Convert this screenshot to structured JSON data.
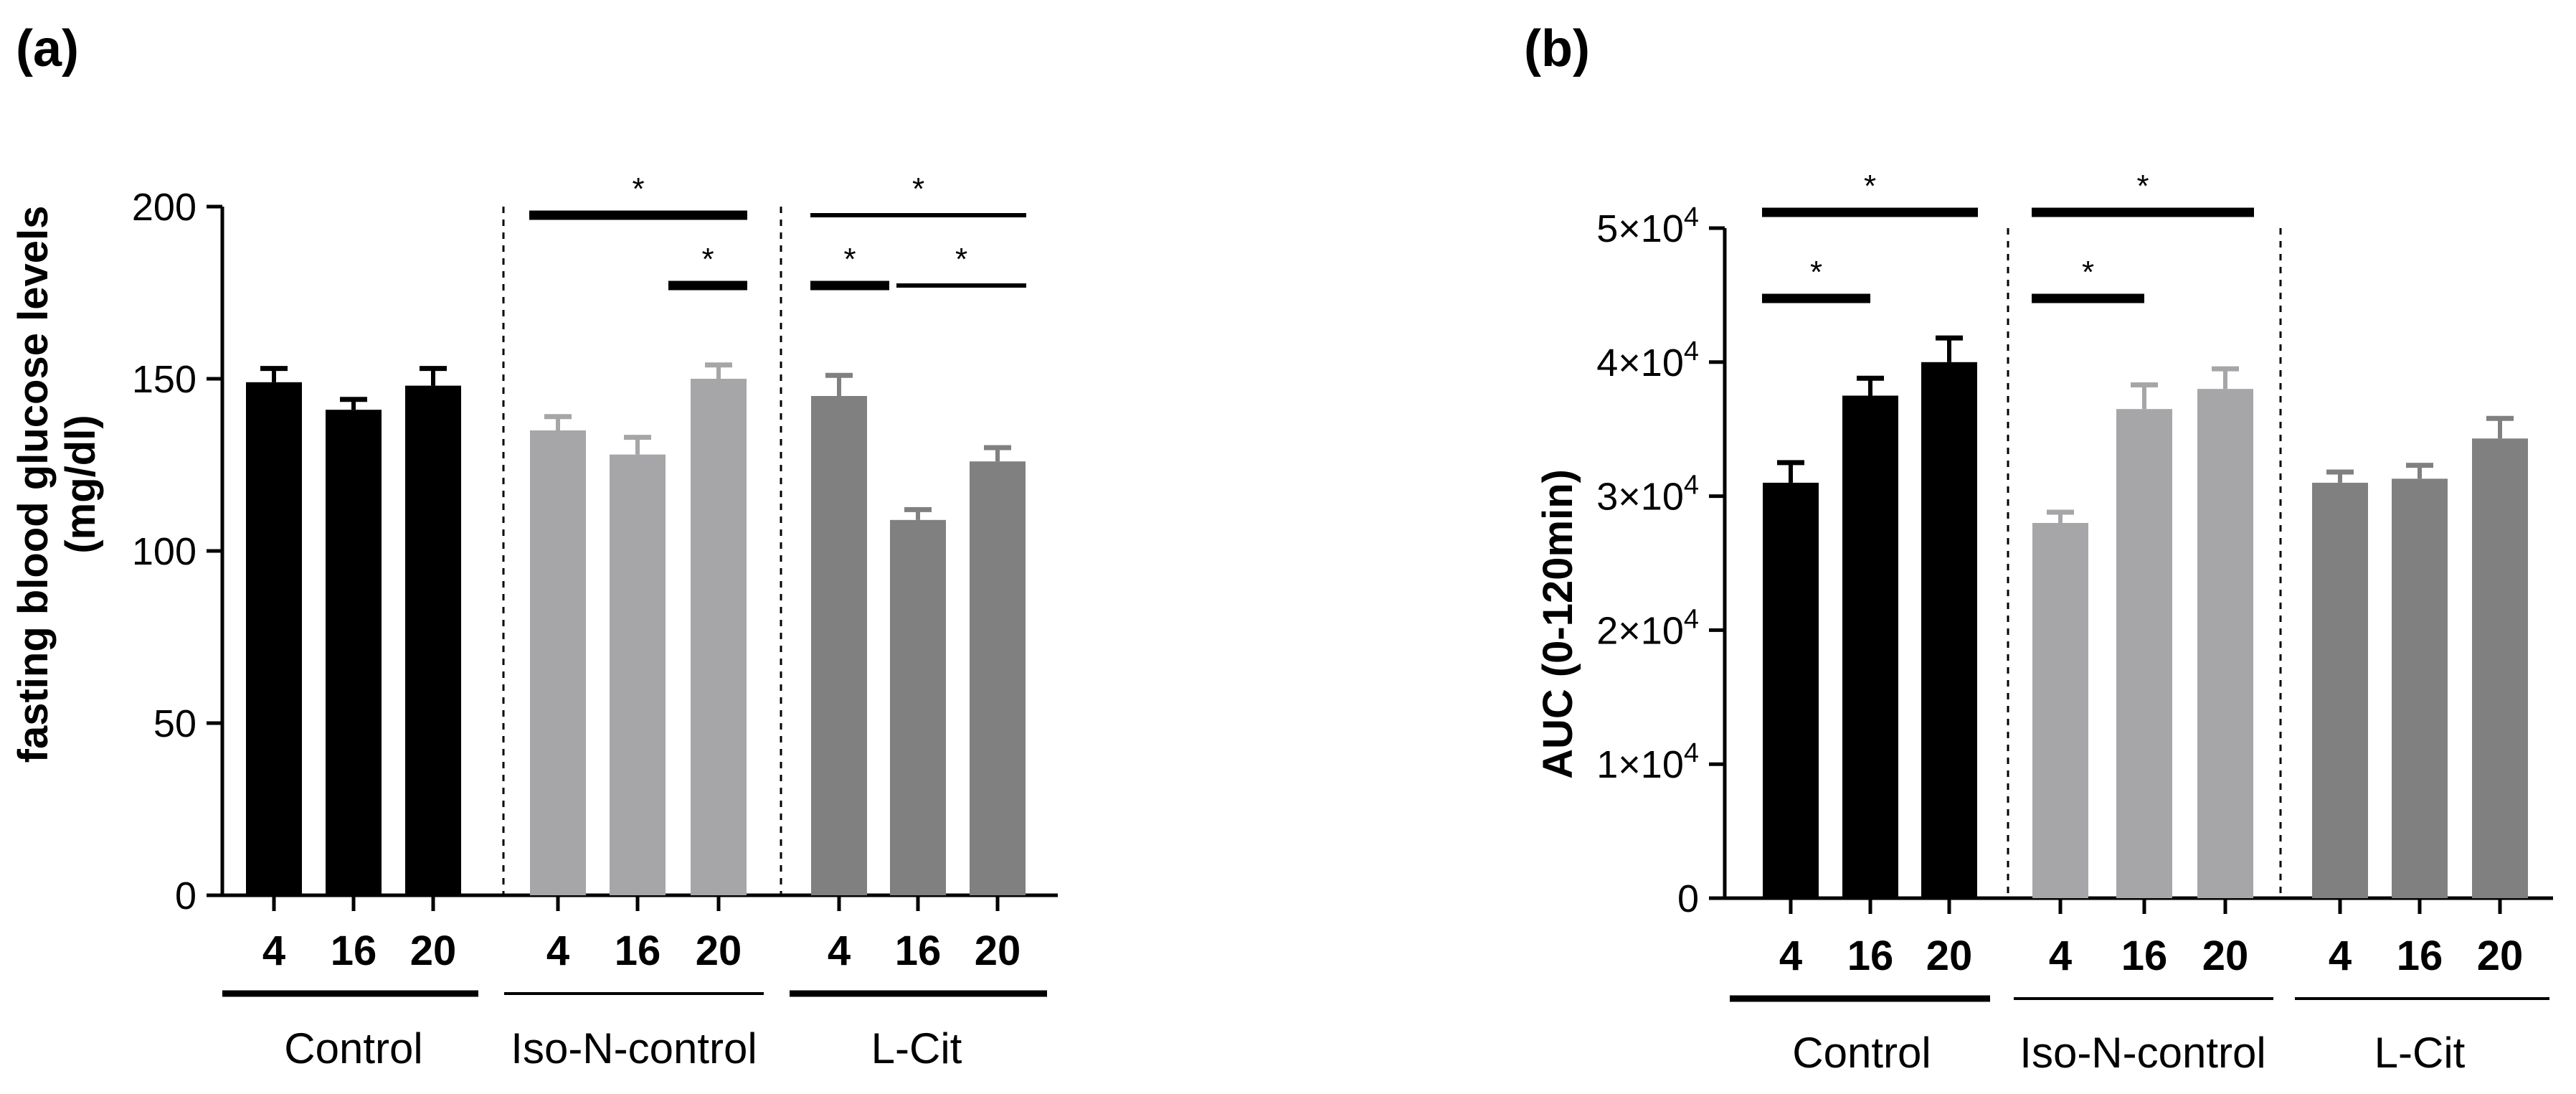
{
  "chart_data": [
    {
      "type": "bar",
      "panel_label": "(a)",
      "title": "",
      "ylabel_line1": "fasting blood glucose levels",
      "ylabel_line2": "(mg/dl)",
      "ylim": [
        0,
        200
      ],
      "yticks": [
        0,
        50,
        100,
        150,
        200
      ],
      "ytick_labels": [
        "0",
        "50",
        "100",
        "150",
        "200"
      ],
      "group_names": [
        "Control",
        "Iso-N-control",
        "L-Cit"
      ],
      "categories": [
        "4",
        "16",
        "20"
      ],
      "group_colors": [
        "#000000",
        "#a6a6a8",
        "#808080"
      ],
      "series": [
        {
          "name": "Control",
          "values": [
            149,
            141,
            148
          ],
          "errors": [
            4,
            3,
            5
          ]
        },
        {
          "name": "Iso-N-control",
          "values": [
            135,
            128,
            150
          ],
          "errors": [
            4,
            5,
            4
          ]
        },
        {
          "name": "L-Cit",
          "values": [
            145,
            109,
            126
          ],
          "errors": [
            6,
            3,
            4
          ]
        }
      ],
      "annotations": [
        {
          "group": 1,
          "from": 0,
          "to": 2,
          "level": 0,
          "label": "*",
          "heavy": true
        },
        {
          "group": 1,
          "from": 2,
          "to": 2,
          "level": 1,
          "label": "*",
          "heavy": true
        },
        {
          "group": 2,
          "from": 0,
          "to": 2,
          "level": 0,
          "label": "*",
          "heavy": false
        },
        {
          "group": 2,
          "from": 0,
          "to": 1,
          "level": 1,
          "label": "*",
          "heavy": true
        },
        {
          "group": 2,
          "from": 1,
          "to": 2,
          "level": 1,
          "label": "*",
          "heavy": false
        }
      ]
    },
    {
      "type": "bar",
      "panel_label": "(b)",
      "title": "",
      "ylabel_line1": "AUC (0-120min)",
      "ylabel_line2": "",
      "ylim": [
        0,
        50000
      ],
      "yticks": [
        0,
        10000,
        20000,
        30000,
        40000,
        50000
      ],
      "ytick_labels": [
        "0",
        "1×10",
        "2×10",
        "3×10",
        "4×10",
        "5×10"
      ],
      "ytick_exponents": [
        "",
        "4",
        "4",
        "4",
        "4",
        "4"
      ],
      "group_names": [
        "Control",
        "Iso-N-control",
        "L-Cit"
      ],
      "categories": [
        "4",
        "16",
        "20"
      ],
      "group_colors": [
        "#000000",
        "#a6a6a8",
        "#808080"
      ],
      "series": [
        {
          "name": "Control",
          "values": [
            31000,
            37500,
            40000
          ],
          "errors": [
            1500,
            1300,
            1800
          ]
        },
        {
          "name": "Iso-N-control",
          "values": [
            28000,
            36500,
            38000
          ],
          "errors": [
            800,
            1800,
            1500
          ]
        },
        {
          "name": "L-Cit",
          "values": [
            31000,
            31300,
            34300
          ],
          "errors": [
            800,
            1000,
            1500
          ]
        }
      ],
      "annotations": [
        {
          "group": 0,
          "from": 0,
          "to": 2,
          "level": 0,
          "label": "*",
          "heavy": true
        },
        {
          "group": 0,
          "from": 0,
          "to": 1,
          "level": 1,
          "label": "*",
          "heavy": true
        },
        {
          "group": 1,
          "from": 0,
          "to": 2,
          "level": 0,
          "label": "*",
          "heavy": true
        },
        {
          "group": 1,
          "from": 0,
          "to": 1,
          "level": 1,
          "label": "*",
          "heavy": true
        }
      ]
    }
  ]
}
